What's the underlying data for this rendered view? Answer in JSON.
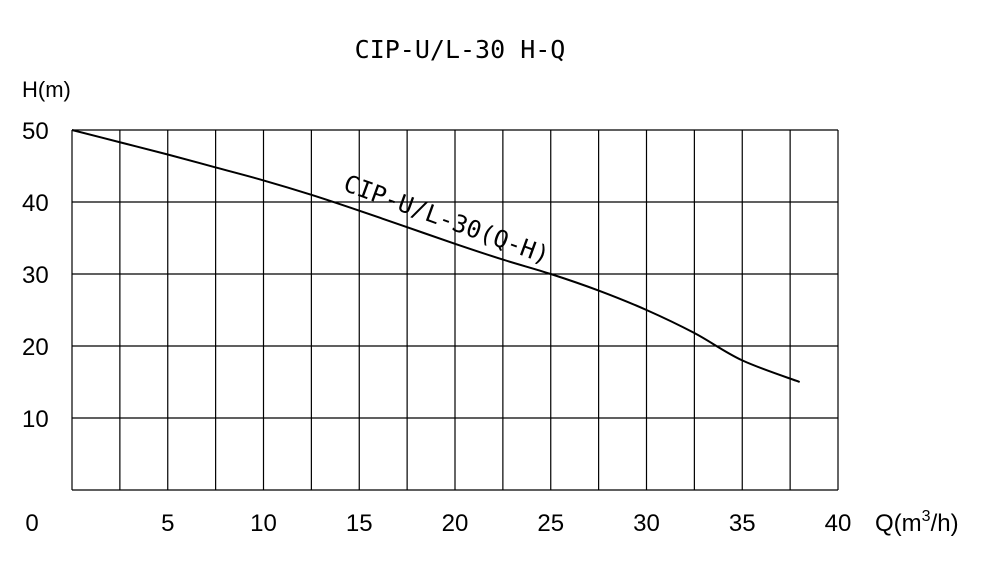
{
  "chart_data": {
    "type": "line",
    "title": "CIP-U/L-30 H-Q",
    "ylabel": "H(m)",
    "xlabel": "Q(m³/h)",
    "xlabel_parts": {
      "prefix": "Q(m",
      "sup": "3",
      "suffix": "/h)"
    },
    "xlim": [
      0,
      40
    ],
    "ylim": [
      0,
      50
    ],
    "x_grid_step": 2.5,
    "y_grid_step": 10,
    "grid": true,
    "x_ticks": [
      0,
      5,
      10,
      15,
      20,
      25,
      30,
      35,
      40
    ],
    "y_ticks": [
      10,
      20,
      30,
      40,
      50
    ],
    "series": [
      {
        "name": "CIP-U/L-30(Q-H)",
        "x": [
          0,
          2.5,
          5,
          7.5,
          10,
          12.5,
          15,
          17.5,
          20,
          22.5,
          25,
          27.5,
          30,
          32.5,
          35,
          38
        ],
        "y": [
          50,
          48.3,
          46.6,
          44.8,
          43,
          41,
          38.8,
          36.5,
          34.2,
          32,
          30,
          27.7,
          25,
          21.8,
          18,
          15
        ]
      }
    ]
  }
}
